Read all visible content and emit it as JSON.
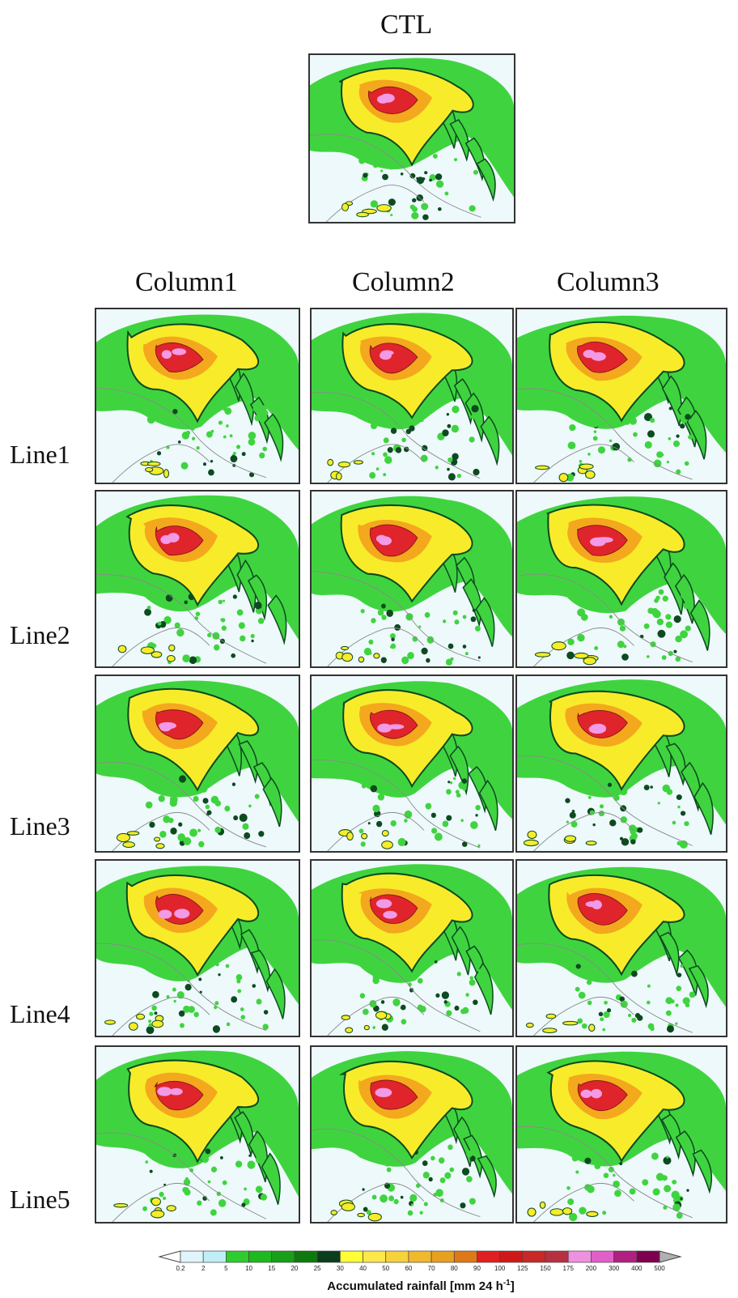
{
  "ctl_title": "CTL",
  "columns": [
    "Column1",
    "Column2",
    "Column3"
  ],
  "rows": [
    "Line1",
    "Line2",
    "Line3",
    "Line4",
    "Line5"
  ],
  "colorbar": {
    "ticks": [
      "0.2",
      "2",
      "5",
      "10",
      "15",
      "20",
      "25",
      "30",
      "40",
      "50",
      "60",
      "70",
      "80",
      "90",
      "100",
      "125",
      "150",
      "175",
      "200",
      "300",
      "400",
      "500"
    ],
    "label": "Accumulated rainfall [mm  24 h",
    "label_superscript": "-1",
    "label_close": "]",
    "colors": [
      "#ffffff",
      "#dff5fb",
      "#bfeef6",
      "#2ecc2e",
      "#1fb81f",
      "#17a017",
      "#0e7a0e",
      "#0b3d1c",
      "#ffff33",
      "#ffe84a",
      "#f7d23a",
      "#f0b82d",
      "#e8a020",
      "#e07818",
      "#e02020",
      "#d01818",
      "#c82828",
      "#b83040",
      "#f090e0",
      "#e060c8",
      "#b02080",
      "#800050",
      "#b0b0b0"
    ],
    "map_colors": {
      "background": "#eef9fb",
      "green": "#3fd43f",
      "dark_green": "#0d4a20",
      "yellow": "#f8ec2a",
      "orange": "#f4a81e",
      "red": "#e0242c",
      "pink": "#f29ae6",
      "border": "#8a8a8a"
    }
  }
}
